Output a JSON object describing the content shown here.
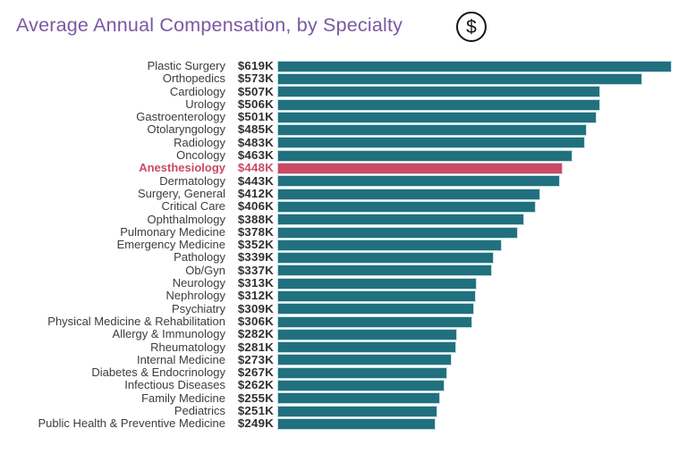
{
  "header": {
    "title": "Average Annual Compensation, by Specialty",
    "icon": "dollar-circle",
    "icon_glyph": "$",
    "title_color": "#7a58a1"
  },
  "colors": {
    "bar": "#21707e",
    "bar_border": "#bedde2",
    "highlight_bar": "#c94a64",
    "label_text": "#3c3c3c",
    "value_text": "#303030",
    "background": "#ffffff"
  },
  "chart_data": {
    "type": "bar",
    "orientation": "horizontal",
    "title": "Average Annual Compensation, by Specialty",
    "xlabel": "",
    "ylabel": "",
    "axes_shown": false,
    "grid": false,
    "legend": "none",
    "value_unit": "$K",
    "xlim": [
      0,
      619
    ],
    "categories": [
      "Plastic Surgery",
      "Orthopedics",
      "Cardiology",
      "Urology",
      "Gastroenterology",
      "Otolaryngology",
      "Radiology",
      "Oncology",
      "Anesthesiology",
      "Dermatology",
      "Surgery, General",
      "Critical Care",
      "Ophthalmology",
      "Pulmonary Medicine",
      "Emergency Medicine",
      "Pathology",
      "Ob/Gyn",
      "Neurology",
      "Nephrology",
      "Psychiatry",
      "Physical Medicine & Rehabilitation",
      "Allergy & Immunology",
      "Rheumatology",
      "Internal Medicine",
      "Diabetes & Endocrinology",
      "Infectious Diseases",
      "Family Medicine",
      "Pediatrics",
      "Public Health & Preventive Medicine"
    ],
    "values": [
      619,
      573,
      507,
      506,
      501,
      485,
      483,
      463,
      448,
      443,
      412,
      406,
      388,
      378,
      352,
      339,
      337,
      313,
      312,
      309,
      306,
      282,
      281,
      273,
      267,
      262,
      255,
      251,
      249
    ],
    "value_labels": [
      "$619K",
      "$573K",
      "$507K",
      "$506K",
      "$501K",
      "$485K",
      "$483K",
      "$463K",
      "$448K",
      "$443K",
      "$412K",
      "$406K",
      "$388K",
      "$378K",
      "$352K",
      "$339K",
      "$337K",
      "$313K",
      "$312K",
      "$309K",
      "$306K",
      "$282K",
      "$281K",
      "$273K",
      "$267K",
      "$262K",
      "$255K",
      "$251K",
      "$249K"
    ],
    "highlight_index": 8,
    "highlight_category": "Anesthesiology",
    "highlight_color": "#c94a64"
  }
}
